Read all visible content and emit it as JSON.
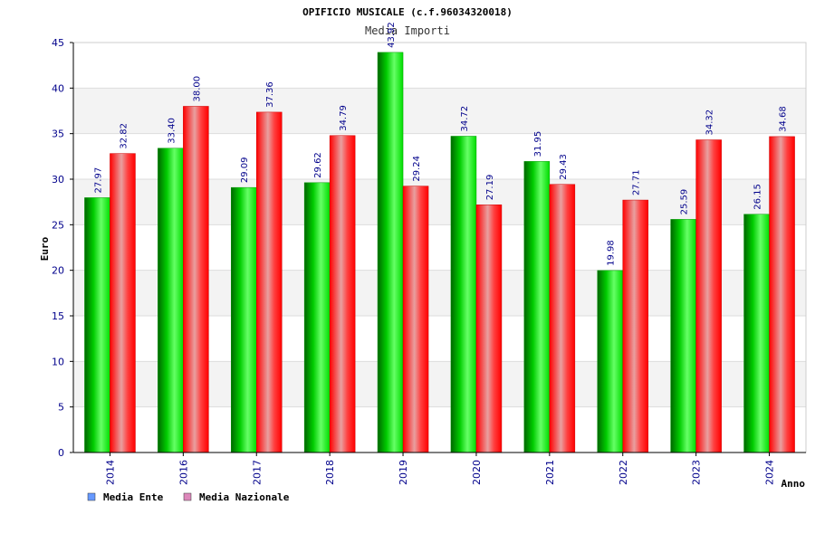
{
  "chart_data": {
    "type": "bar",
    "title": "OPIFICIO MUSICALE (c.f.96034320018)",
    "subtitle": "Media Importi",
    "xlabel": "Anno",
    "ylabel": "Euro",
    "ylim": [
      0,
      45
    ],
    "yticks": [
      "0",
      "5",
      "10",
      "15",
      "20",
      "25",
      "30",
      "35",
      "40",
      "45"
    ],
    "grid": true,
    "legend_position": "bottom-left",
    "categories": [
      "2014",
      "2016",
      "2017",
      "2018",
      "2019",
      "2020",
      "2021",
      "2022",
      "2023",
      "2024"
    ],
    "series": [
      {
        "name": "Media Ente",
        "color": "#00cc00",
        "legend_color": "#6699ff",
        "values": [
          27.97,
          33.4,
          29.09,
          29.62,
          43.92,
          34.72,
          31.95,
          19.98,
          25.59,
          26.15
        ],
        "labels": [
          "27.97",
          "33.40",
          "29.09",
          "29.62",
          "43.92",
          "34.72",
          "31.95",
          "19.98",
          "25.59",
          "26.15"
        ]
      },
      {
        "name": "Media Nazionale",
        "color": "#ff0000",
        "legend_color": "#dd88bb",
        "values": [
          32.82,
          38.0,
          37.36,
          34.79,
          29.24,
          27.19,
          29.43,
          27.71,
          34.32,
          34.68
        ],
        "labels": [
          "32.82",
          "38.00",
          "37.36",
          "34.79",
          "29.24",
          "27.19",
          "29.43",
          "27.71",
          "34.32",
          "34.68"
        ]
      }
    ]
  }
}
